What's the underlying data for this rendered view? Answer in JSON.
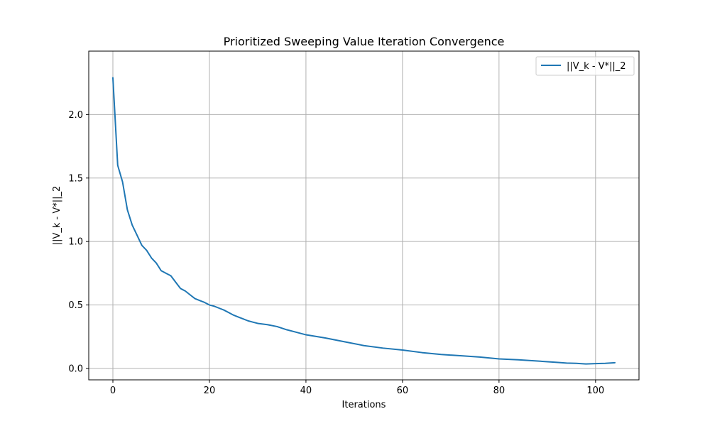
{
  "chart_data": {
    "type": "line",
    "title": "Prioritized Sweeping Value Iteration Convergence",
    "xlabel": "Iterations",
    "ylabel": "||V_k - V*||_2",
    "xlim": [
      -5,
      109
    ],
    "ylim": [
      -0.09,
      2.5
    ],
    "xticks": [
      0,
      20,
      40,
      60,
      80,
      100
    ],
    "xtick_labels": [
      "0",
      "20",
      "40",
      "60",
      "80",
      "100"
    ],
    "yticks": [
      0.0,
      0.5,
      1.0,
      1.5,
      2.0
    ],
    "ytick_labels": [
      "0.0",
      "0.5",
      "1.0",
      "1.5",
      "2.0"
    ],
    "grid": true,
    "legend_position": "top-right",
    "series": [
      {
        "name": "||V_k - V*||_2",
        "color": "#1f77b4",
        "x": [
          0,
          1,
          2,
          3,
          4,
          5,
          6,
          7,
          8,
          9,
          10,
          11,
          12,
          13,
          14,
          15,
          16,
          17,
          18,
          19,
          20,
          21,
          22,
          23,
          24,
          25,
          26,
          27,
          28,
          29,
          30,
          32,
          34,
          36,
          38,
          40,
          44,
          48,
          52,
          56,
          60,
          64,
          68,
          72,
          76,
          80,
          84,
          88,
          92,
          94,
          96,
          98,
          100,
          102,
          104
        ],
        "y": [
          2.29,
          1.6,
          1.47,
          1.25,
          1.13,
          1.05,
          0.97,
          0.93,
          0.87,
          0.83,
          0.77,
          0.75,
          0.73,
          0.68,
          0.63,
          0.61,
          0.58,
          0.55,
          0.535,
          0.52,
          0.5,
          0.49,
          0.475,
          0.46,
          0.44,
          0.42,
          0.405,
          0.39,
          0.375,
          0.365,
          0.355,
          0.345,
          0.33,
          0.305,
          0.285,
          0.265,
          0.24,
          0.21,
          0.18,
          0.16,
          0.145,
          0.125,
          0.11,
          0.1,
          0.09,
          0.075,
          0.068,
          0.058,
          0.048,
          0.042,
          0.04,
          0.035,
          0.038,
          0.04,
          0.045
        ]
      }
    ]
  }
}
